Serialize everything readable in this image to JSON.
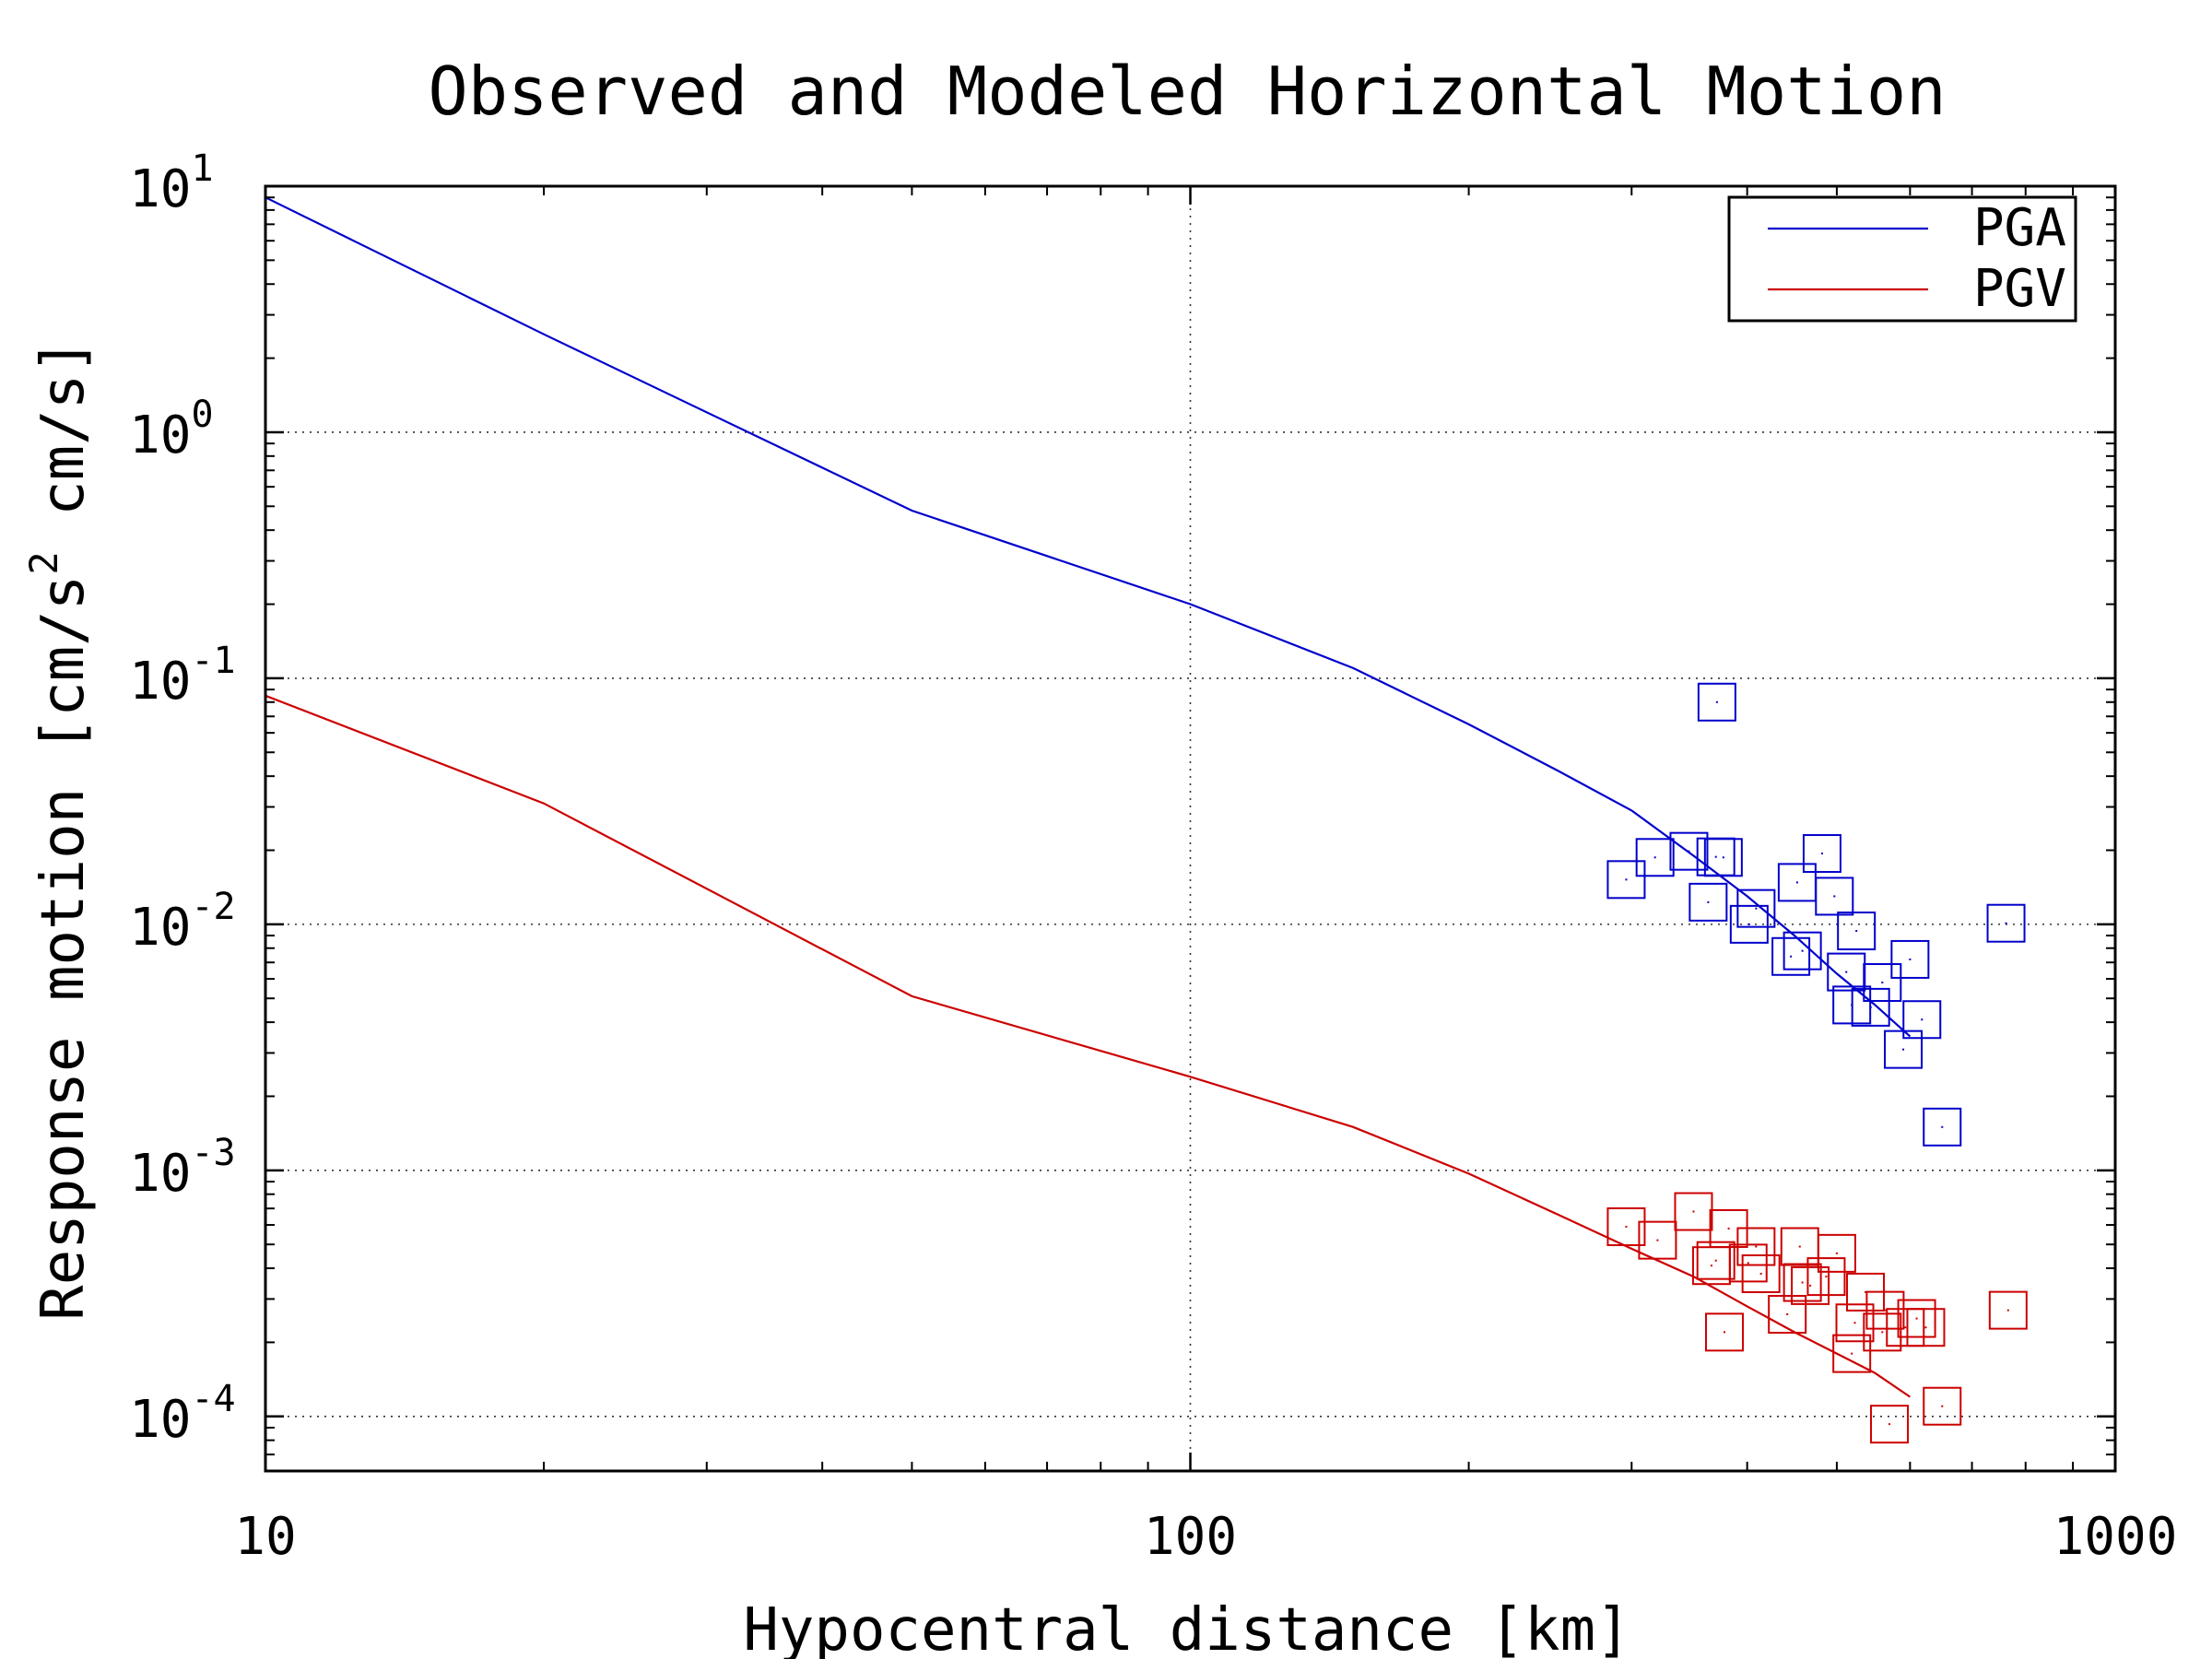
{
  "chart_data": {
    "type": "scatter",
    "title": "Observed and Modeled Horizontal Motion",
    "xlabel": "Hypocentral distance [km]",
    "ylabel": "Response motion [cm/s² cm/s]",
    "ylabel_parts": {
      "pre": "Response motion [cm/s",
      "sup": "2",
      "post": " cm/s]"
    },
    "x_scale": "log",
    "y_scale": "log",
    "xlim": [
      10,
      1000
    ],
    "ylim": [
      6e-05,
      10
    ],
    "x_ticks": [
      {
        "value": 10,
        "label": "10"
      },
      {
        "value": 100,
        "label": "100"
      },
      {
        "value": 1000,
        "label": "1000"
      }
    ],
    "y_ticks": [
      {
        "value": 10,
        "base": "10",
        "exp": "1"
      },
      {
        "value": 1,
        "base": "10",
        "exp": "0"
      },
      {
        "value": 0.1,
        "base": "10",
        "exp": "-1"
      },
      {
        "value": 0.01,
        "base": "10",
        "exp": "-2"
      },
      {
        "value": 0.001,
        "base": "10",
        "exp": "-3"
      },
      {
        "value": 0.0001,
        "base": "10",
        "exp": "-4"
      }
    ],
    "grid": true,
    "legend_position": "top-right",
    "series": [
      {
        "name": "PGA",
        "color": "#0000cc",
        "model": [
          [
            10,
            9.0
          ],
          [
            20,
            2.5
          ],
          [
            50,
            0.48
          ],
          [
            100,
            0.2
          ],
          [
            150,
            0.11
          ],
          [
            200,
            0.065
          ],
          [
            250,
            0.042
          ],
          [
            300,
            0.029
          ],
          [
            350,
            0.019
          ],
          [
            400,
            0.013
          ],
          [
            450,
            0.009
          ],
          [
            500,
            0.0063
          ],
          [
            550,
            0.0047
          ],
          [
            600,
            0.0035
          ]
        ],
        "observed": [
          [
            296,
            0.0152
          ],
          [
            318,
            0.0187
          ],
          [
            346,
            0.0198
          ],
          [
            363,
            0.0123
          ],
          [
            370,
            0.0188
          ],
          [
            371,
            0.08
          ],
          [
            377,
            0.0187
          ],
          [
            402,
            0.01
          ],
          [
            409,
            0.0116
          ],
          [
            446,
            0.0074
          ],
          [
            453,
            0.0148
          ],
          [
            459,
            0.0078
          ],
          [
            482,
            0.0194
          ],
          [
            497,
            0.013
          ],
          [
            512,
            0.0064
          ],
          [
            519,
            0.0047
          ],
          [
            525,
            0.0094
          ],
          [
            544,
            0.0046
          ],
          [
            560,
            0.0058
          ],
          [
            590,
            0.0031
          ],
          [
            600,
            0.0072
          ],
          [
            618,
            0.0041
          ],
          [
            650,
            0.0015
          ],
          [
            762,
            0.0101
          ]
        ]
      },
      {
        "name": "PGV",
        "color": "#cc0000",
        "model": [
          [
            10,
            0.085
          ],
          [
            20,
            0.031
          ],
          [
            50,
            0.0051
          ],
          [
            100,
            0.0024
          ],
          [
            150,
            0.0015
          ],
          [
            200,
            0.00097
          ],
          [
            250,
            0.00066
          ],
          [
            300,
            0.00048
          ],
          [
            350,
            0.00037
          ],
          [
            400,
            0.00028
          ],
          [
            450,
            0.00022
          ],
          [
            500,
            0.00018
          ],
          [
            550,
            0.00015
          ],
          [
            600,
            0.00012
          ]
        ],
        "observed": [
          [
            296,
            0.00059
          ],
          [
            320,
            0.00052
          ],
          [
            350,
            0.00068
          ],
          [
            366,
            0.00041
          ],
          [
            370,
            0.00043
          ],
          [
            378,
            0.00022
          ],
          [
            382,
            0.00058
          ],
          [
            401,
            0.00042
          ],
          [
            409,
            0.00049
          ],
          [
            414,
            0.00038
          ],
          [
            442,
            0.00026
          ],
          [
            456,
            0.00049
          ],
          [
            459,
            0.00035
          ],
          [
            468,
            0.00034
          ],
          [
            487,
            0.00037
          ],
          [
            500,
            0.00046
          ],
          [
            519,
            0.00018
          ],
          [
            523,
            0.00024
          ],
          [
            537,
            0.00032
          ],
          [
            560,
            0.00022
          ],
          [
            564,
            0.00027
          ],
          [
            570,
            9.3e-05
          ],
          [
            593,
            0.00023
          ],
          [
            610,
            0.00025
          ],
          [
            624,
            0.00023
          ],
          [
            650,
            0.00011
          ],
          [
            766,
            0.00027
          ]
        ]
      }
    ]
  }
}
